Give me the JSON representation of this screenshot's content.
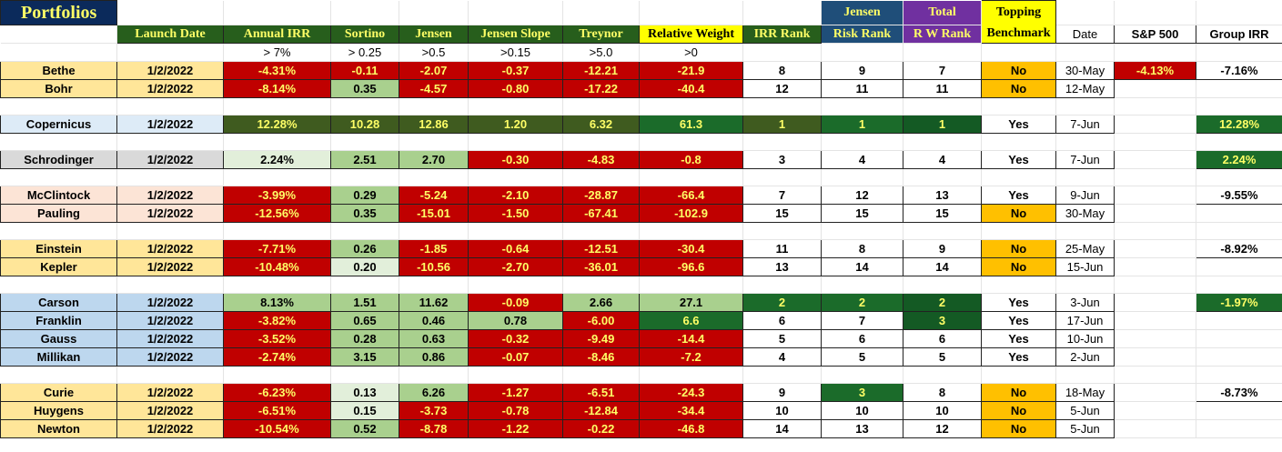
{
  "title": "Portfolios",
  "colors": {
    "red": "#c00000",
    "dark_olive": "#3f5b1f",
    "light_green": "#a9d08e",
    "pale_green": "#e2efda",
    "dark_green": "#1b6b2a",
    "orange": "#ffc000",
    "header_green": "#275e1c",
    "header_text": "#ffff66"
  },
  "headers": {
    "launch_date": "Launch Date",
    "annual_irr": "Annual IRR",
    "sortino": "Sortino",
    "jensen": "Jensen",
    "jensen_slope": "Jensen Slope",
    "treynor": "Treynor",
    "relative_weight": "Relative Weight",
    "irr_rank": "IRR Rank",
    "jensen_top": "Jensen",
    "jensen_risk_rank": "Risk Rank",
    "total_top": "Total",
    "rw_rank": "R W Rank",
    "topping_top": "Topping",
    "benchmark": "Benchmark",
    "date": "Date",
    "sp500": "S&P 500",
    "group_irr": "Group IRR"
  },
  "thresholds": {
    "annual_irr": "> 7%",
    "sortino": "> 0.25",
    "jensen": ">0.5",
    "jensen_slope": ">0.15",
    "treynor": ">5.0",
    "relative_weight": ">0"
  },
  "rows": [
    {
      "name": "Bethe",
      "name_bg": "#ffe699",
      "date": "1/2/2022",
      "irr": "-4.31%",
      "irr_bg": "#c00000",
      "sortino": "-0.11",
      "sortino_bg": "#c00000",
      "jensen": "-2.07",
      "jensen_bg": "#c00000",
      "slope": "-0.37",
      "slope_bg": "#c00000",
      "treynor": "-12.21",
      "treynor_bg": "#c00000",
      "rw": "-21.9",
      "rw_bg": "#c00000",
      "irr_rank": "8",
      "irr_rank_bg": "#ffffff",
      "risk_rank": "9",
      "risk_rank_bg": "#ffffff",
      "rw_rank": "7",
      "rw_rank_bg": "#ffffff",
      "bench": "No",
      "bench_bg": "#ffc000",
      "bench_date": "30-May",
      "sp": "-4.13%",
      "sp_bg": "#c00000",
      "group": "-7.16%",
      "group_bg": "#ffffff"
    },
    {
      "name": "Bohr",
      "name_bg": "#ffe699",
      "date": "1/2/2022",
      "irr": "-8.14%",
      "irr_bg": "#c00000",
      "sortino": "0.35",
      "sortino_bg": "#a9d08e",
      "jensen": "-4.57",
      "jensen_bg": "#c00000",
      "slope": "-0.80",
      "slope_bg": "#c00000",
      "treynor": "-17.22",
      "treynor_bg": "#c00000",
      "rw": "-40.4",
      "rw_bg": "#c00000",
      "irr_rank": "12",
      "irr_rank_bg": "#ffffff",
      "risk_rank": "11",
      "risk_rank_bg": "#ffffff",
      "rw_rank": "11",
      "rw_rank_bg": "#ffffff",
      "bench": "No",
      "bench_bg": "#ffc000",
      "bench_date": "12-May",
      "sp": "",
      "sp_bg": "",
      "group": "",
      "group_bg": ""
    },
    {
      "gap": true
    },
    {
      "name": "Copernicus",
      "name_bg": "#ddebf7",
      "date": "1/2/2022",
      "irr": "12.28%",
      "irr_bg": "#3f5b1f",
      "sortino": "10.28",
      "sortino_bg": "#3f5b1f",
      "jensen": "12.86",
      "jensen_bg": "#3f5b1f",
      "slope": "1.20",
      "slope_bg": "#3f5b1f",
      "treynor": "6.32",
      "treynor_bg": "#3f5b1f",
      "rw": "61.3",
      "rw_bg": "#1b6b2a",
      "irr_rank": "1",
      "irr_rank_bg": "#3f5b1f",
      "risk_rank": "1",
      "risk_rank_bg": "#1b6b2a",
      "rw_rank": "1",
      "rw_rank_bg": "#145a24",
      "bench": "Yes",
      "bench_bg": "#ffffff",
      "bench_date": "7-Jun",
      "sp": "",
      "sp_bg": "",
      "group": "12.28%",
      "group_bg": "#1b6b2a"
    },
    {
      "gap": true
    },
    {
      "name": "Schrodinger",
      "name_bg": "#d9d9d9",
      "date": "1/2/2022",
      "irr": "2.24%",
      "irr_bg": "#e2efda",
      "sortino": "2.51",
      "sortino_bg": "#a9d08e",
      "jensen": "2.70",
      "jensen_bg": "#a9d08e",
      "slope": "-0.30",
      "slope_bg": "#c00000",
      "treynor": "-4.83",
      "treynor_bg": "#c00000",
      "rw": "-0.8",
      "rw_bg": "#c00000",
      "irr_rank": "3",
      "irr_rank_bg": "#ffffff",
      "risk_rank": "4",
      "risk_rank_bg": "#ffffff",
      "rw_rank": "4",
      "rw_rank_bg": "#ffffff",
      "bench": "Yes",
      "bench_bg": "#ffffff",
      "bench_date": "7-Jun",
      "sp": "",
      "sp_bg": "",
      "group": "2.24%",
      "group_bg": "#1b6b2a"
    },
    {
      "gap": true
    },
    {
      "name": "McClintock",
      "name_bg": "#fce4d6",
      "date": "1/2/2022",
      "irr": "-3.99%",
      "irr_bg": "#c00000",
      "sortino": "0.29",
      "sortino_bg": "#a9d08e",
      "jensen": "-5.24",
      "jensen_bg": "#c00000",
      "slope": "-2.10",
      "slope_bg": "#c00000",
      "treynor": "-28.87",
      "treynor_bg": "#c00000",
      "rw": "-66.4",
      "rw_bg": "#c00000",
      "irr_rank": "7",
      "irr_rank_bg": "#ffffff",
      "risk_rank": "12",
      "risk_rank_bg": "#ffffff",
      "rw_rank": "13",
      "rw_rank_bg": "#ffffff",
      "bench": "Yes",
      "bench_bg": "#ffffff",
      "bench_date": "9-Jun",
      "sp": "",
      "sp_bg": "",
      "group": "-9.55%",
      "group_bg": "#ffffff"
    },
    {
      "name": "Pauling",
      "name_bg": "#fce4d6",
      "date": "1/2/2022",
      "irr": "-12.56%",
      "irr_bg": "#c00000",
      "sortino": "0.35",
      "sortino_bg": "#a9d08e",
      "jensen": "-15.01",
      "jensen_bg": "#c00000",
      "slope": "-1.50",
      "slope_bg": "#c00000",
      "treynor": "-67.41",
      "treynor_bg": "#c00000",
      "rw": "-102.9",
      "rw_bg": "#c00000",
      "irr_rank": "15",
      "irr_rank_bg": "#ffffff",
      "risk_rank": "15",
      "risk_rank_bg": "#ffffff",
      "rw_rank": "15",
      "rw_rank_bg": "#ffffff",
      "bench": "No",
      "bench_bg": "#ffc000",
      "bench_date": "30-May",
      "sp": "",
      "sp_bg": "",
      "group": "",
      "group_bg": ""
    },
    {
      "gap": true
    },
    {
      "name": "Einstein",
      "name_bg": "#ffe699",
      "date": "1/2/2022",
      "irr": "-7.71%",
      "irr_bg": "#c00000",
      "sortino": "0.26",
      "sortino_bg": "#a9d08e",
      "jensen": "-1.85",
      "jensen_bg": "#c00000",
      "slope": "-0.64",
      "slope_bg": "#c00000",
      "treynor": "-12.51",
      "treynor_bg": "#c00000",
      "rw": "-30.4",
      "rw_bg": "#c00000",
      "irr_rank": "11",
      "irr_rank_bg": "#ffffff",
      "risk_rank": "8",
      "risk_rank_bg": "#ffffff",
      "rw_rank": "9",
      "rw_rank_bg": "#ffffff",
      "bench": "No",
      "bench_bg": "#ffc000",
      "bench_date": "25-May",
      "sp": "",
      "sp_bg": "",
      "group": "-8.92%",
      "group_bg": "#ffffff"
    },
    {
      "name": "Kepler",
      "name_bg": "#ffe699",
      "date": "1/2/2022",
      "irr": "-10.48%",
      "irr_bg": "#c00000",
      "sortino": "0.20",
      "sortino_bg": "#e2efda",
      "jensen": "-10.56",
      "jensen_bg": "#c00000",
      "slope": "-2.70",
      "slope_bg": "#c00000",
      "treynor": "-36.01",
      "treynor_bg": "#c00000",
      "rw": "-96.6",
      "rw_bg": "#c00000",
      "irr_rank": "13",
      "irr_rank_bg": "#ffffff",
      "risk_rank": "14",
      "risk_rank_bg": "#ffffff",
      "rw_rank": "14",
      "rw_rank_bg": "#ffffff",
      "bench": "No",
      "bench_bg": "#ffc000",
      "bench_date": "15-Jun",
      "sp": "",
      "sp_bg": "",
      "group": "",
      "group_bg": ""
    },
    {
      "gap": true
    },
    {
      "name": "Carson",
      "name_bg": "#bdd7ee",
      "date": "1/2/2022",
      "irr": "8.13%",
      "irr_bg": "#a9d08e",
      "sortino": "1.51",
      "sortino_bg": "#a9d08e",
      "jensen": "11.62",
      "jensen_bg": "#a9d08e",
      "slope": "-0.09",
      "slope_bg": "#c00000",
      "treynor": "2.66",
      "treynor_bg": "#a9d08e",
      "rw": "27.1",
      "rw_bg": "#a9d08e",
      "irr_rank": "2",
      "irr_rank_bg": "#1b6b2a",
      "risk_rank": "2",
      "risk_rank_bg": "#1b6b2a",
      "rw_rank": "2",
      "rw_rank_bg": "#145a24",
      "bench": "Yes",
      "bench_bg": "#ffffff",
      "bench_date": "3-Jun",
      "sp": "",
      "sp_bg": "",
      "group": "-1.97%",
      "group_bg": "#1b6b2a"
    },
    {
      "name": "Franklin",
      "name_bg": "#bdd7ee",
      "date": "1/2/2022",
      "irr": "-3.82%",
      "irr_bg": "#c00000",
      "sortino": "0.65",
      "sortino_bg": "#a9d08e",
      "jensen": "0.46",
      "jensen_bg": "#a9d08e",
      "slope": "0.78",
      "slope_bg": "#a9d08e",
      "treynor": "-6.00",
      "treynor_bg": "#c00000",
      "rw": "6.6",
      "rw_bg": "#1b6b2a",
      "irr_rank": "6",
      "irr_rank_bg": "#ffffff",
      "risk_rank": "7",
      "risk_rank_bg": "#ffffff",
      "rw_rank": "3",
      "rw_rank_bg": "#145a24",
      "bench": "Yes",
      "bench_bg": "#ffffff",
      "bench_date": "17-Jun",
      "sp": "",
      "sp_bg": "",
      "group": "",
      "group_bg": ""
    },
    {
      "name": "Gauss",
      "name_bg": "#bdd7ee",
      "date": "1/2/2022",
      "irr": "-3.52%",
      "irr_bg": "#c00000",
      "sortino": "0.28",
      "sortino_bg": "#a9d08e",
      "jensen": "0.63",
      "jensen_bg": "#a9d08e",
      "slope": "-0.32",
      "slope_bg": "#c00000",
      "treynor": "-9.49",
      "treynor_bg": "#c00000",
      "rw": "-14.4",
      "rw_bg": "#c00000",
      "irr_rank": "5",
      "irr_rank_bg": "#ffffff",
      "risk_rank": "6",
      "risk_rank_bg": "#ffffff",
      "rw_rank": "6",
      "rw_rank_bg": "#ffffff",
      "bench": "Yes",
      "bench_bg": "#ffffff",
      "bench_date": "10-Jun",
      "sp": "",
      "sp_bg": "",
      "group": "",
      "group_bg": ""
    },
    {
      "name": "Millikan",
      "name_bg": "#bdd7ee",
      "date": "1/2/2022",
      "irr": "-2.74%",
      "irr_bg": "#c00000",
      "sortino": "3.15",
      "sortino_bg": "#a9d08e",
      "jensen": "0.86",
      "jensen_bg": "#a9d08e",
      "slope": "-0.07",
      "slope_bg": "#c00000",
      "treynor": "-8.46",
      "treynor_bg": "#c00000",
      "rw": "-7.2",
      "rw_bg": "#c00000",
      "irr_rank": "4",
      "irr_rank_bg": "#ffffff",
      "risk_rank": "5",
      "risk_rank_bg": "#ffffff",
      "rw_rank": "5",
      "rw_rank_bg": "#ffffff",
      "bench": "Yes",
      "bench_bg": "#ffffff",
      "bench_date": "2-Jun",
      "sp": "",
      "sp_bg": "",
      "group": "",
      "group_bg": ""
    },
    {
      "gap": true
    },
    {
      "name": "Curie",
      "name_bg": "#ffe699",
      "date": "1/2/2022",
      "irr": "-6.23%",
      "irr_bg": "#c00000",
      "sortino": "0.13",
      "sortino_bg": "#e2efda",
      "jensen": "6.26",
      "jensen_bg": "#a9d08e",
      "slope": "-1.27",
      "slope_bg": "#c00000",
      "treynor": "-6.51",
      "treynor_bg": "#c00000",
      "rw": "-24.3",
      "rw_bg": "#c00000",
      "irr_rank": "9",
      "irr_rank_bg": "#ffffff",
      "risk_rank": "3",
      "risk_rank_bg": "#1b6b2a",
      "rw_rank": "8",
      "rw_rank_bg": "#ffffff",
      "bench": "No",
      "bench_bg": "#ffc000",
      "bench_date": "18-May",
      "sp": "",
      "sp_bg": "",
      "group": "-8.73%",
      "group_bg": "#ffffff"
    },
    {
      "name": "Huygens",
      "name_bg": "#ffe699",
      "date": "1/2/2022",
      "irr": "-6.51%",
      "irr_bg": "#c00000",
      "sortino": "0.15",
      "sortino_bg": "#e2efda",
      "jensen": "-3.73",
      "jensen_bg": "#c00000",
      "slope": "-0.78",
      "slope_bg": "#c00000",
      "treynor": "-12.84",
      "treynor_bg": "#c00000",
      "rw": "-34.4",
      "rw_bg": "#c00000",
      "irr_rank": "10",
      "irr_rank_bg": "#ffffff",
      "risk_rank": "10",
      "risk_rank_bg": "#ffffff",
      "rw_rank": "10",
      "rw_rank_bg": "#ffffff",
      "bench": "No",
      "bench_bg": "#ffc000",
      "bench_date": "5-Jun",
      "sp": "",
      "sp_bg": "",
      "group": "",
      "group_bg": ""
    },
    {
      "name": "Newton",
      "name_bg": "#ffe699",
      "date": "1/2/2022",
      "irr": "-10.54%",
      "irr_bg": "#c00000",
      "sortino": "0.52",
      "sortino_bg": "#a9d08e",
      "jensen": "-8.78",
      "jensen_bg": "#c00000",
      "slope": "-1.22",
      "slope_bg": "#c00000",
      "treynor": "-0.22",
      "treynor_bg": "#c00000",
      "rw": "-46.8",
      "rw_bg": "#c00000",
      "irr_rank": "14",
      "irr_rank_bg": "#ffffff",
      "risk_rank": "13",
      "risk_rank_bg": "#ffffff",
      "rw_rank": "12",
      "rw_rank_bg": "#ffffff",
      "bench": "No",
      "bench_bg": "#ffc000",
      "bench_date": "5-Jun",
      "sp": "",
      "sp_bg": "",
      "group": "",
      "group_bg": ""
    }
  ]
}
